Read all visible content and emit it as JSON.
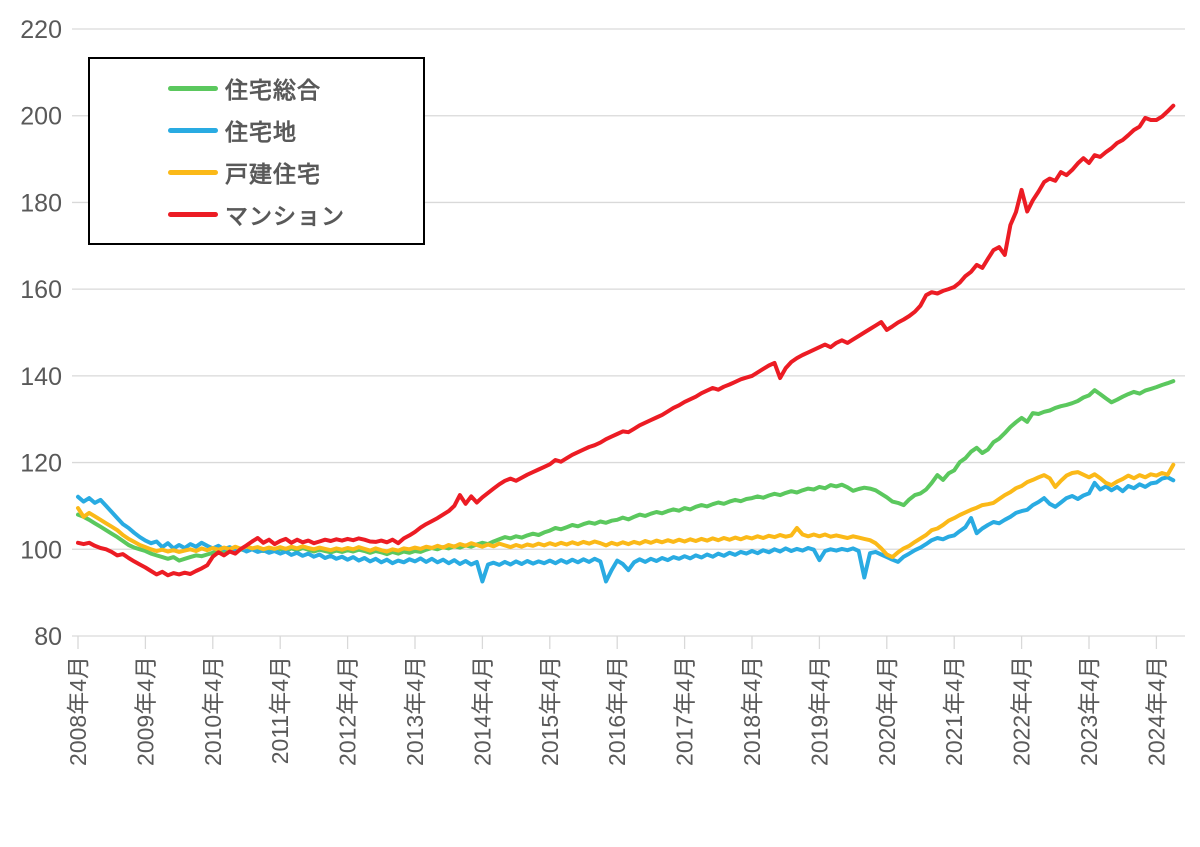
{
  "chart_data": {
    "type": "line",
    "title": "",
    "x_axis": {
      "frequency": "monthly",
      "start": "2008年4月",
      "end": "2024年7月",
      "tick_labels": [
        "2008年4月",
        "2009年4月",
        "2010年4月",
        "2011年4月",
        "2012年4月",
        "2013年4月",
        "2014年4月",
        "2015年4月",
        "2016年4月",
        "2017年4月",
        "2018年4月",
        "2019年4月",
        "2020年4月",
        "2021年4月",
        "2022年4月",
        "2023年4月",
        "2024年4月"
      ]
    },
    "y_axis": {
      "min": 80,
      "max": 220,
      "ticks": [
        220,
        200,
        180,
        160,
        140,
        120,
        100,
        80
      ]
    },
    "grid": "horizontal",
    "legend_position": "top-left-box",
    "colors": {
      "grid_line": "#d9d9d9",
      "tick_mark": "#d9d9d9",
      "axis_text": "#595959",
      "legend_border": "#000000",
      "background": "#ffffff"
    },
    "series": [
      {
        "id": "jutaku-sogo",
        "name": "住宅総合",
        "color": "#5bc85e",
        "values": [
          108.0,
          107.5,
          106.8,
          106.0,
          105.2,
          104.4,
          103.6,
          102.8,
          101.9,
          101.0,
          100.4,
          100.0,
          99.6,
          99.0,
          98.6,
          98.2,
          97.8,
          98.2,
          97.4,
          97.8,
          98.2,
          98.6,
          98.4,
          98.8,
          99.2,
          99.6,
          99.2,
          99.8,
          99.4,
          100.0,
          99.6,
          100.2,
          99.8,
          99.6,
          100.0,
          99.7,
          100.1,
          99.7,
          100.2,
          99.8,
          100.3,
          99.9,
          99.5,
          99.9,
          99.6,
          99.3,
          99.7,
          99.4,
          99.8,
          99.5,
          99.9,
          99.6,
          99.2,
          99.6,
          99.3,
          98.9,
          99.4,
          99.0,
          99.5,
          99.2,
          99.6,
          99.4,
          99.9,
          100.3,
          100.0,
          100.5,
          100.2,
          100.7,
          100.4,
          100.9,
          100.6,
          101.1,
          101.5,
          101.2,
          101.8,
          102.3,
          102.8,
          102.5,
          103.0,
          102.7,
          103.2,
          103.6,
          103.3,
          103.9,
          104.3,
          104.9,
          104.6,
          105.1,
          105.6,
          105.3,
          105.8,
          106.2,
          105.9,
          106.4,
          106.1,
          106.6,
          106.8,
          107.3,
          106.9,
          107.5,
          108.0,
          107.7,
          108.2,
          108.6,
          108.3,
          108.8,
          109.2,
          108.9,
          109.5,
          109.2,
          109.8,
          110.2,
          109.9,
          110.4,
          110.8,
          110.5,
          111.0,
          111.4,
          111.1,
          111.6,
          111.8,
          112.2,
          111.9,
          112.4,
          112.8,
          112.5,
          113.0,
          113.4,
          113.1,
          113.6,
          114.0,
          113.8,
          114.4,
          114.1,
          114.8,
          114.5,
          114.9,
          114.3,
          113.5,
          113.9,
          114.2,
          114.0,
          113.6,
          112.8,
          112.0,
          111.0,
          110.7,
          110.2,
          111.5,
          112.5,
          112.9,
          113.8,
          115.3,
          117.1,
          116.0,
          117.5,
          118.2,
          120.1,
          121.0,
          122.5,
          123.4,
          122.2,
          123.0,
          124.7,
          125.5,
          126.8,
          128.2,
          129.3,
          130.3,
          129.4,
          131.4,
          131.2,
          131.7,
          132.0,
          132.6,
          133.0,
          133.3,
          133.7,
          134.2,
          135.0,
          135.5,
          136.7,
          135.8,
          134.8,
          133.9,
          134.5,
          135.2,
          135.8,
          136.3,
          135.9,
          136.6,
          137.0,
          137.4,
          137.9,
          138.3,
          138.8
        ]
      },
      {
        "id": "jutakuchi",
        "name": "住宅地",
        "color": "#29abe2",
        "values": [
          112.1,
          111.0,
          111.8,
          110.7,
          111.4,
          110.0,
          108.6,
          107.2,
          105.8,
          104.9,
          103.8,
          102.8,
          102.0,
          101.4,
          101.8,
          100.5,
          101.4,
          100.2,
          101.0,
          100.3,
          101.2,
          100.6,
          101.5,
          100.8,
          100.2,
          100.8,
          100.0,
          100.5,
          99.7,
          100.2,
          99.5,
          100.0,
          99.4,
          99.8,
          99.2,
          99.6,
          99.0,
          99.5,
          98.7,
          99.2,
          98.5,
          99.0,
          98.3,
          98.8,
          98.0,
          98.5,
          97.8,
          98.3,
          97.6,
          98.2,
          97.4,
          98.0,
          97.2,
          97.8,
          97.0,
          97.6,
          96.8,
          97.4,
          97.0,
          97.7,
          97.2,
          97.9,
          97.1,
          97.8,
          97.0,
          97.6,
          96.8,
          97.5,
          96.6,
          97.3,
          96.5,
          97.1,
          92.6,
          96.5,
          96.9,
          96.4,
          97.1,
          96.5,
          97.2,
          96.6,
          97.3,
          96.7,
          97.2,
          96.8,
          97.4,
          96.8,
          97.5,
          96.9,
          97.6,
          97.0,
          97.7,
          97.1,
          97.8,
          97.2,
          92.6,
          95.2,
          97.4,
          96.6,
          95.2,
          97.0,
          97.7,
          97.1,
          97.8,
          97.3,
          98.0,
          97.5,
          98.2,
          97.8,
          98.4,
          97.9,
          98.6,
          98.1,
          98.8,
          98.3,
          99.0,
          98.5,
          99.2,
          98.7,
          99.4,
          99.0,
          99.6,
          99.1,
          99.8,
          99.3,
          100.0,
          99.5,
          100.2,
          99.6,
          100.1,
          99.7,
          100.3,
          99.9,
          97.5,
          99.6,
          100.0,
          99.7,
          100.1,
          99.8,
          100.2,
          99.6,
          93.5,
          99.1,
          99.4,
          98.8,
          98.2,
          97.6,
          97.1,
          98.3,
          99.0,
          99.8,
          100.4,
          101.2,
          102.1,
          102.6,
          102.3,
          102.9,
          103.2,
          104.2,
          105.1,
          107.2,
          103.7,
          104.8,
          105.6,
          106.3,
          106.0,
          106.8,
          107.5,
          108.4,
          108.8,
          109.1,
          110.2,
          110.9,
          111.8,
          110.5,
          109.8,
          110.8,
          111.8,
          112.3,
          111.6,
          112.4,
          112.9,
          115.3,
          113.8,
          114.5,
          113.6,
          114.4,
          113.4,
          114.6,
          114.1,
          115.0,
          114.4,
          115.2,
          115.4,
          116.3,
          116.6,
          115.9
        ]
      },
      {
        "id": "kodate-jutaku",
        "name": "戸建住宅",
        "color": "#fbb918",
        "values": [
          109.5,
          107.5,
          108.4,
          107.6,
          106.8,
          106.0,
          105.2,
          104.4,
          103.3,
          102.4,
          101.7,
          101.0,
          100.5,
          100.0,
          99.6,
          99.9,
          99.5,
          99.8,
          99.4,
          99.7,
          100.0,
          99.6,
          100.2,
          99.8,
          100.3,
          99.9,
          100.4,
          100.0,
          100.6,
          100.1,
          100.7,
          100.2,
          100.5,
          100.0,
          100.4,
          100.1,
          100.5,
          100.1,
          100.6,
          100.2,
          100.7,
          100.3,
          100.0,
          100.4,
          100.1,
          99.8,
          100.2,
          99.9,
          100.3,
          100.0,
          100.5,
          100.1,
          99.7,
          100.2,
          99.8,
          99.5,
          100.0,
          99.7,
          100.2,
          100.0,
          100.4,
          100.1,
          100.6,
          100.3,
          100.8,
          100.4,
          101.0,
          100.6,
          101.2,
          100.8,
          101.4,
          101.0,
          100.6,
          101.1,
          100.7,
          101.3,
          100.9,
          100.5,
          101.0,
          100.6,
          101.1,
          100.8,
          101.3,
          100.9,
          101.4,
          101.0,
          101.5,
          101.1,
          101.6,
          101.2,
          101.7,
          101.3,
          101.8,
          101.4,
          100.9,
          101.5,
          101.1,
          101.6,
          101.2,
          101.7,
          101.3,
          101.9,
          101.5,
          102.0,
          101.6,
          102.1,
          101.7,
          102.2,
          101.8,
          102.3,
          101.9,
          102.4,
          102.0,
          102.5,
          102.1,
          102.6,
          102.2,
          102.7,
          102.3,
          102.8,
          102.5,
          103.0,
          102.6,
          103.1,
          102.8,
          103.3,
          102.9,
          103.2,
          104.9,
          103.4,
          103.0,
          103.4,
          103.0,
          103.4,
          102.9,
          103.2,
          102.9,
          102.6,
          103.0,
          102.7,
          102.4,
          102.1,
          101.4,
          100.2,
          98.8,
          98.2,
          99.3,
          100.2,
          100.8,
          101.7,
          102.5,
          103.3,
          104.4,
          104.8,
          105.6,
          106.6,
          107.2,
          107.9,
          108.5,
          109.1,
          109.6,
          110.2,
          110.4,
          110.7,
          111.6,
          112.5,
          113.2,
          114.1,
          114.6,
          115.5,
          116.0,
          116.6,
          117.1,
          116.4,
          114.4,
          115.8,
          117.0,
          117.6,
          117.8,
          117.2,
          116.6,
          117.3,
          116.4,
          115.3,
          114.8,
          115.6,
          116.2,
          117.0,
          116.4,
          117.1,
          116.6,
          117.3,
          117.0,
          117.6,
          117.2,
          119.5
        ]
      },
      {
        "id": "mansion",
        "name": "マンション",
        "color": "#ec1c24",
        "values": [
          101.5,
          101.2,
          101.5,
          100.8,
          100.3,
          100.0,
          99.4,
          98.6,
          98.9,
          98.0,
          97.2,
          96.5,
          95.8,
          95.0,
          94.2,
          94.8,
          94.0,
          94.5,
          94.2,
          94.6,
          94.3,
          95.0,
          95.6,
          96.3,
          98.3,
          99.3,
          98.6,
          99.5,
          99.0,
          100.1,
          100.9,
          101.8,
          102.6,
          101.5,
          102.2,
          101.2,
          101.9,
          102.4,
          101.5,
          102.2,
          101.6,
          102.0,
          101.4,
          101.8,
          102.2,
          101.9,
          102.3,
          102.0,
          102.4,
          102.1,
          102.5,
          102.2,
          101.8,
          101.7,
          102.0,
          101.6,
          102.2,
          101.4,
          102.5,
          103.2,
          104.0,
          105.0,
          105.8,
          106.5,
          107.2,
          108.0,
          108.8,
          110.0,
          112.5,
          110.5,
          112.2,
          110.8,
          112.0,
          113.0,
          114.0,
          115.0,
          115.8,
          116.3,
          115.8,
          116.5,
          117.2,
          117.8,
          118.4,
          119.0,
          119.6,
          120.6,
          120.2,
          121.0,
          121.8,
          122.4,
          123.0,
          123.6,
          124.0,
          124.6,
          125.4,
          126.0,
          126.6,
          127.2,
          127.0,
          127.8,
          128.6,
          129.2,
          129.8,
          130.4,
          131.0,
          131.8,
          132.6,
          133.2,
          134.0,
          134.6,
          135.2,
          136.0,
          136.6,
          137.2,
          136.8,
          137.5,
          138.0,
          138.6,
          139.2,
          139.6,
          140.0,
          140.8,
          141.6,
          142.4,
          143.0,
          139.5,
          141.8,
          143.2,
          144.1,
          144.8,
          145.4,
          146.0,
          146.6,
          147.2,
          146.6,
          147.6,
          148.2,
          147.6,
          148.4,
          149.2,
          150.0,
          150.8,
          151.6,
          152.4,
          150.6,
          151.4,
          152.3,
          153.0,
          153.8,
          154.8,
          156.2,
          158.6,
          159.3,
          159.0,
          159.6,
          160.0,
          160.5,
          161.5,
          163.0,
          164.0,
          165.6,
          164.9,
          167.0,
          169.0,
          169.7,
          167.9,
          174.8,
          177.8,
          182.9,
          177.9,
          180.5,
          182.5,
          184.7,
          185.5,
          185.0,
          187.0,
          186.3,
          187.5,
          189.0,
          190.2,
          189.1,
          190.9,
          190.5,
          191.6,
          192.5,
          193.7,
          194.4,
          195.5,
          196.7,
          197.5,
          199.5,
          199.0,
          199.0,
          199.8,
          201.0,
          202.3
        ]
      }
    ]
  }
}
